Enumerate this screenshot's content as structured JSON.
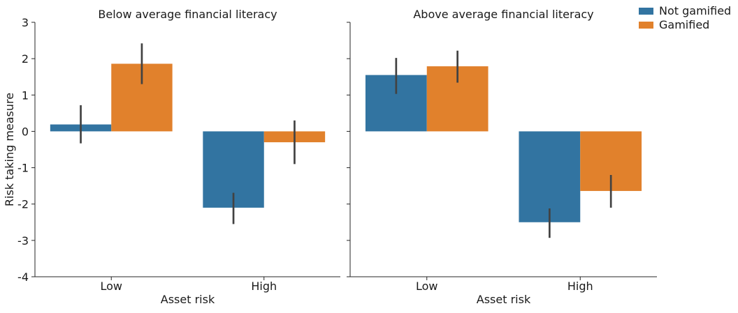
{
  "chart_data": {
    "type": "bar",
    "facet_title_prefix": "",
    "panels": [
      {
        "title": "Below average financial literacy",
        "categories": [
          "Low",
          "High"
        ],
        "series": [
          {
            "name": "Not gamified",
            "values": [
              0.19,
              -2.1
            ],
            "error_low": [
              -0.33,
              -2.55
            ],
            "error_high": [
              0.72,
              -1.69
            ]
          },
          {
            "name": "Gamified",
            "values": [
              1.86,
              -0.3
            ],
            "error_low": [
              1.3,
              -0.9
            ],
            "error_high": [
              2.42,
              0.3
            ]
          }
        ]
      },
      {
        "title": "Above average financial literacy",
        "categories": [
          "Low",
          "High"
        ],
        "series": [
          {
            "name": "Not gamified",
            "values": [
              1.55,
              -2.5
            ],
            "error_low": [
              1.03,
              -2.93
            ],
            "error_high": [
              2.02,
              -2.12
            ]
          },
          {
            "name": "Gamified",
            "values": [
              1.79,
              -1.64
            ],
            "error_low": [
              1.34,
              -2.1
            ],
            "error_high": [
              2.22,
              -1.2
            ]
          }
        ]
      }
    ],
    "xlabel": "Asset risk",
    "ylabel": "Risk taking measure",
    "ylim": [
      -4,
      3
    ],
    "yticks": [
      3,
      2,
      1,
      0,
      -1,
      -2,
      -3,
      -4
    ],
    "ytick_labels": [
      "3",
      "2",
      "1",
      "0",
      "-1",
      "-2",
      "-3",
      "-4"
    ],
    "legend": {
      "placement": "top-right",
      "entries": [
        "Not gamified",
        "Gamified"
      ]
    },
    "colors": {
      "Not gamified": "#3274a1",
      "Gamified": "#e1812c",
      "error_bar": "#424242",
      "axis": "#262626"
    },
    "grid": false
  }
}
